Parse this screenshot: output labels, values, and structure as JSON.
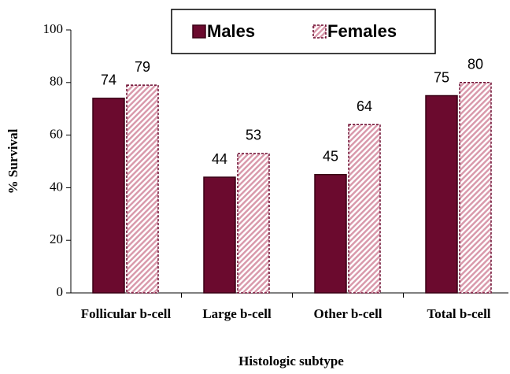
{
  "chart_data": {
    "type": "bar",
    "categories": [
      "Follicular b-cell",
      "Large b-cell",
      "Other b-cell",
      "Total b-cell"
    ],
    "series": [
      {
        "name": "Males",
        "color": "#6b0a2e",
        "values": [
          74,
          44,
          45,
          75
        ]
      },
      {
        "name": "Females",
        "color": "#d99aac",
        "values": [
          79,
          53,
          64,
          80
        ]
      }
    ],
    "ylim": [
      0,
      100
    ],
    "yticks": [
      0,
      20,
      40,
      60,
      80,
      100
    ],
    "ylabel": "% Survival",
    "xlabel": "Histologic subtype",
    "legend": "top"
  }
}
